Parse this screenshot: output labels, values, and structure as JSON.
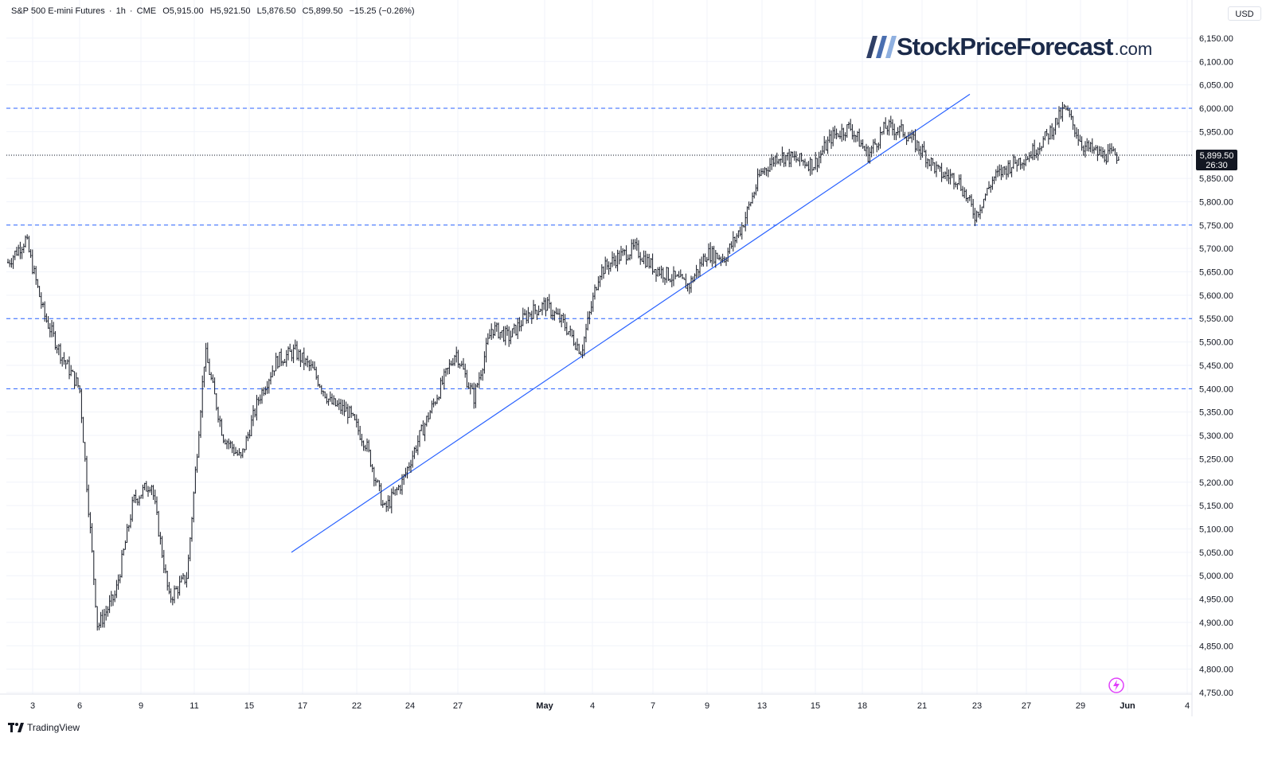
{
  "header": {
    "symbol": "S&P 500 E-mini Futures",
    "interval": "1h",
    "exchange": "CME",
    "open": "O5,915.00",
    "high": "H5,921.50",
    "low": "L5,876.50",
    "close": "C5,899.50",
    "change": "−15.25 (−0.26%)"
  },
  "currency": "USD",
  "last_price": {
    "value": "5,899.50",
    "countdown": "26:30"
  },
  "logo": {
    "brand": "StockPriceForecast",
    "tld": ".com"
  },
  "footer": {
    "brand": "TradingView"
  },
  "colors": {
    "candle": "#131722",
    "trendline": "#2962ff",
    "level_line": "#2962ff",
    "grid": "#f0f3fa",
    "badge_bg": "#131722",
    "bolt": "#e040fb"
  },
  "icons": [
    "stockpriceforecast-logo-icon",
    "tradingview-logo-icon",
    "lightning-bolt-icon"
  ],
  "chart_data": {
    "type": "line",
    "title": "",
    "xlabel": "",
    "ylabel": "",
    "ylim": [
      4700,
      6200
    ],
    "y_ticks": [
      4750,
      4800,
      4850,
      4900,
      4950,
      5000,
      5050,
      5100,
      5150,
      5200,
      5250,
      5300,
      5350,
      5400,
      5450,
      5500,
      5550,
      5600,
      5650,
      5700,
      5750,
      5800,
      5850,
      5900,
      5950,
      6000,
      6050,
      6100,
      6150
    ],
    "y_tick_labels": [
      "4,750.00",
      "4,800.00",
      "4,850.00",
      "4,900.00",
      "4,950.00",
      "5,000.00",
      "5,050.00",
      "5,100.00",
      "5,150.00",
      "5,200.00",
      "5,250.00",
      "5,300.00",
      "5,350.00",
      "5,400.00",
      "5,450.00",
      "5,500.00",
      "5,550.00",
      "5,600.00",
      "5,650.00",
      "5,700.00",
      "5,750.00",
      "5,800.00",
      "5,850.00",
      "5,900.00",
      "5,950.00",
      "6,000.00",
      "6,050.00",
      "6,100.00",
      "6,150.00"
    ],
    "x_tick_labels": [
      "3",
      "6",
      "9",
      "11",
      "15",
      "17",
      "22",
      "24",
      "27",
      "May",
      "4",
      "7",
      "9",
      "13",
      "15",
      "18",
      "21",
      "23",
      "27",
      "29",
      "Jun",
      "4"
    ],
    "horizontal_levels": [
      6000,
      5750,
      5550,
      5400
    ],
    "last_price_line": 5899.5,
    "trendline": {
      "start": {
        "x": "17",
        "y": 5050
      },
      "end": {
        "x": "23",
        "y": 6030
      }
    },
    "series": [
      {
        "date": [
          "Apr 2",
          "Apr 3",
          "Apr 3",
          "Apr 4",
          "Apr 4",
          "Apr 6",
          "Apr 7",
          "Apr 7",
          "Apr 8",
          "Apr 8",
          "Apr 9",
          "Apr 9",
          "Apr 10",
          "Apr 10",
          "Apr 11",
          "Apr 11",
          "Apr 14",
          "Apr 15",
          "Apr 16",
          "Apr 16",
          "Apr 17",
          "Apr 17",
          "Apr 21",
          "Apr 21",
          "Apr 22",
          "Apr 22",
          "Apr 23",
          "Apr 24",
          "Apr 25",
          "Apr 28",
          "Apr 29",
          "Apr 30",
          "Apr 30",
          "May 1",
          "May 2",
          "May 4",
          "May 5",
          "May 6",
          "May 7",
          "May 8",
          "May 8",
          "May 9",
          "May 11",
          "May 12",
          "May 13",
          "May 14",
          "May 15",
          "May 16",
          "May 18",
          "May 19",
          "May 20",
          "May 21",
          "May 21",
          "May 22",
          "May 23",
          "May 23",
          "May 26",
          "May 27",
          "May 28",
          "May 29",
          "May 29",
          "May 30",
          "May 30"
        ],
        "close": [
          5670,
          5720,
          5560,
          5470,
          5400,
          4890,
          4960,
          5160,
          5200,
          4950,
          5000,
          5480,
          5300,
          5250,
          5380,
          5460,
          5480,
          5440,
          5370,
          5350,
          5280,
          5140,
          5200,
          5300,
          5390,
          5480,
          5380,
          5530,
          5510,
          5560,
          5580,
          5540,
          5480,
          5650,
          5680,
          5700,
          5660,
          5640,
          5620,
          5690,
          5680,
          5750,
          5860,
          5900,
          5890,
          5880,
          5940,
          5960,
          5900,
          5960,
          5950,
          5910,
          5860,
          5850,
          5770,
          5850,
          5880,
          5900,
          5940,
          6000,
          5920,
          5900,
          5899.5
        ]
      }
    ]
  }
}
